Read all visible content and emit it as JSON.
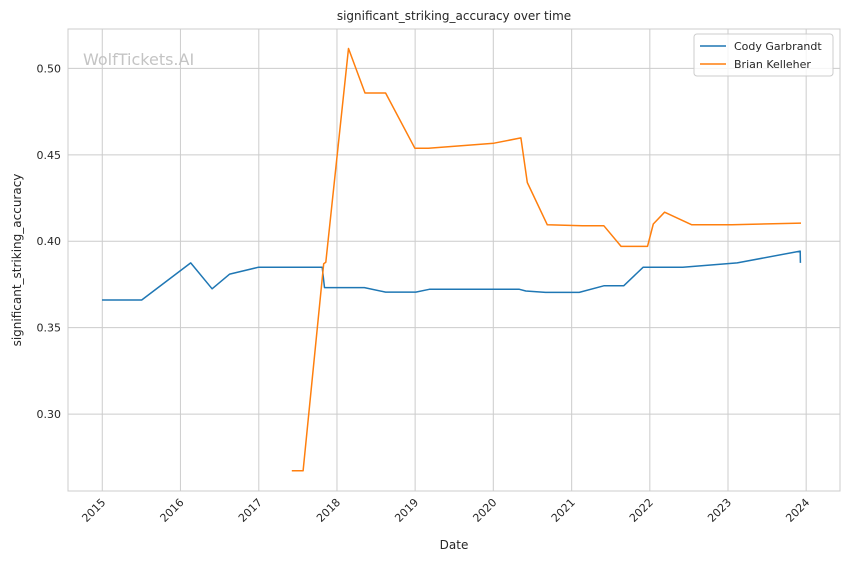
{
  "chart_data": {
    "type": "line",
    "title": "significant_striking_accuracy over time",
    "xlabel": "Date",
    "ylabel": "significant_striking_accuracy",
    "watermark": "WolfTickets.AI",
    "x_ticks": [
      "2015",
      "2016",
      "2017",
      "2018",
      "2019",
      "2020",
      "2021",
      "2022",
      "2023",
      "2024"
    ],
    "y_ticks": [
      "0.30",
      "0.35",
      "0.40",
      "0.45",
      "0.50"
    ],
    "xlim": [
      "2014-07-25",
      "2024-06-07"
    ],
    "ylim": [
      0.2555,
      0.5228
    ],
    "grid": true,
    "legend_position": "top-right",
    "colors": {
      "series1": "#1f77b4",
      "series2": "#ff7f0e",
      "grid": "#cccccc",
      "axes": "#cccccc"
    },
    "series": [
      {
        "name": "Cody Garbrandt",
        "color": "#1f77b4",
        "points": [
          [
            "2014-12-31",
            0.366
          ],
          [
            "2015-07-04",
            0.366
          ],
          [
            "2016-02-18",
            0.3875
          ],
          [
            "2016-05-28",
            0.3725
          ],
          [
            "2016-08-18",
            0.381
          ],
          [
            "2016-12-31",
            0.385
          ],
          [
            "2017-10-24",
            0.385
          ],
          [
            "2017-11-04",
            0.3732
          ],
          [
            "2018-05-09",
            0.3732
          ],
          [
            "2018-08-16",
            0.3706
          ],
          [
            "2019-01-04",
            0.3706
          ],
          [
            "2019-03-08",
            0.3722
          ],
          [
            "2020-05-02",
            0.3722
          ],
          [
            "2020-06-01",
            0.3712
          ],
          [
            "2020-09-01",
            0.3704
          ],
          [
            "2021-02-05",
            0.3704
          ],
          [
            "2021-05-31",
            0.3742
          ],
          [
            "2021-09-01",
            0.3742
          ],
          [
            "2021-12-01",
            0.385
          ],
          [
            "2022-06-04",
            0.385
          ],
          [
            "2023-02-13",
            0.3875
          ],
          [
            "2023-12-04",
            0.3943
          ],
          [
            "2023-12-05",
            0.3875
          ]
        ]
      },
      {
        "name": "Brian Kelleher",
        "color": "#ff7f0e",
        "points": [
          [
            "2017-06-04",
            0.2672
          ],
          [
            "2017-07-27",
            0.2672
          ],
          [
            "2017-10-31",
            0.387
          ],
          [
            "2017-11-10",
            0.3878
          ],
          [
            "2018-02-24",
            0.5115
          ],
          [
            "2018-05-12",
            0.4858
          ],
          [
            "2018-08-16",
            0.4858
          ],
          [
            "2018-12-31",
            0.4538
          ],
          [
            "2019-03-04",
            0.4538
          ],
          [
            "2020-01-04",
            0.4567
          ],
          [
            "2020-05-09",
            0.4598
          ],
          [
            "2020-06-08",
            0.434
          ],
          [
            "2020-09-09",
            0.4095
          ],
          [
            "2021-02-20",
            0.409
          ],
          [
            "2021-05-31",
            0.409
          ],
          [
            "2021-08-20",
            0.397
          ],
          [
            "2021-12-21",
            0.397
          ],
          [
            "2022-01-17",
            0.41
          ],
          [
            "2022-03-11",
            0.4168
          ],
          [
            "2022-07-16",
            0.4095
          ],
          [
            "2023-01-19",
            0.4095
          ],
          [
            "2023-12-08",
            0.4105
          ]
        ]
      }
    ]
  }
}
